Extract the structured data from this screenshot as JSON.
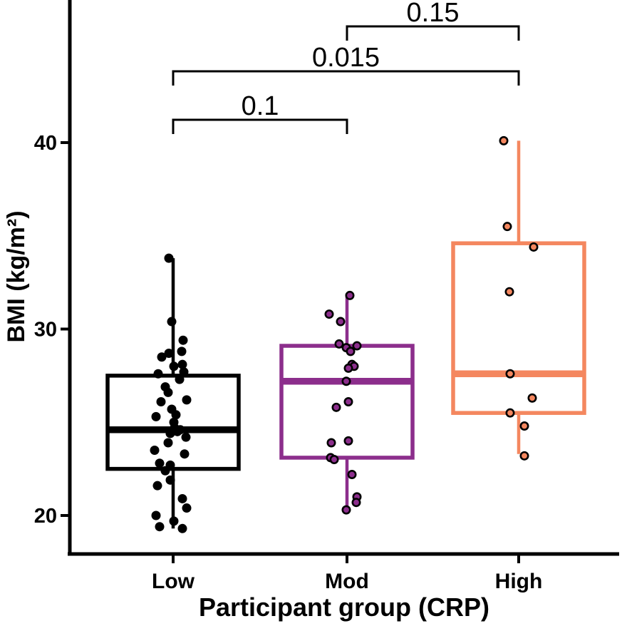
{
  "chart_data": {
    "type": "boxplot",
    "title": "",
    "xlabel": "Participant group (CRP)",
    "ylabel": "BMI (kg/m²)",
    "y_ticks": [
      20,
      30,
      40
    ],
    "ylim": [
      17.9,
      47.6
    ],
    "grid": false,
    "legend": "none",
    "categories": [
      "Low",
      "Mod",
      "High"
    ],
    "groups": [
      {
        "name": "Low",
        "color": "#000000",
        "point_style": "filled-black",
        "box": {
          "whisker_low": 19.3,
          "q1": 22.5,
          "median": 24.6,
          "q3": 27.5,
          "whisker_high": 33.8
        },
        "points": [
          [
            -6,
            33.8
          ],
          [
            -2,
            30.4
          ],
          [
            14,
            29.4
          ],
          [
            12,
            28.8
          ],
          [
            -16,
            28.5
          ],
          [
            -6,
            28.7
          ],
          [
            1,
            28.0
          ],
          [
            13,
            28.1
          ],
          [
            15,
            27.7
          ],
          [
            -21,
            27.6
          ],
          [
            9,
            27.3
          ],
          [
            -11,
            26.9
          ],
          [
            -7,
            26.6
          ],
          [
            -17,
            26.1
          ],
          [
            19,
            26.2
          ],
          [
            -2,
            25.7
          ],
          [
            4,
            25.4
          ],
          [
            -24,
            25.3
          ],
          [
            1,
            25.0
          ],
          [
            6,
            24.5
          ],
          [
            -4,
            24.4
          ],
          [
            2,
            24.7
          ],
          [
            10,
            24.6
          ],
          [
            18,
            24.2
          ],
          [
            -7,
            23.9
          ],
          [
            -26,
            23.5
          ],
          [
            16,
            23.3
          ],
          [
            -19,
            22.8
          ],
          [
            -4,
            22.7
          ],
          [
            -11,
            22.4
          ],
          [
            -4,
            21.9
          ],
          [
            -22,
            21.6
          ],
          [
            13,
            20.9
          ],
          [
            19,
            20.4
          ],
          [
            -24,
            20.0
          ],
          [
            1,
            19.7
          ],
          [
            -19,
            19.4
          ],
          [
            13,
            19.3
          ]
        ]
      },
      {
        "name": "Mod",
        "color": "#8C2E8C",
        "point_style": "color-fill-black-ring",
        "box": {
          "whisker_low": 20.2,
          "q1": 23.1,
          "median": 27.2,
          "q3": 29.1,
          "whisker_high": 31.9
        },
        "points": [
          [
            4,
            31.8
          ],
          [
            -25,
            30.8
          ],
          [
            -9,
            30.4
          ],
          [
            -11,
            29.2
          ],
          [
            14,
            29.1
          ],
          [
            -1,
            29.0
          ],
          [
            5,
            28.8
          ],
          [
            7,
            28.1
          ],
          [
            10,
            28.0
          ],
          [
            2,
            27.9
          ],
          [
            -1,
            27.2
          ],
          [
            2,
            26.1
          ],
          [
            -15,
            25.8
          ],
          [
            2,
            24.0
          ],
          [
            -22,
            23.9
          ],
          [
            -23,
            23.1
          ],
          [
            -18,
            23.0
          ],
          [
            7,
            22.2
          ],
          [
            14,
            21.0
          ],
          [
            13,
            20.7
          ],
          [
            -1,
            20.3
          ]
        ]
      },
      {
        "name": "High",
        "color": "#F4875F",
        "point_style": "color-fill-black-ring",
        "box": {
          "whisker_low": 23.3,
          "q1": 25.5,
          "median": 27.6,
          "q3": 34.6,
          "whisker_high": 40.1
        },
        "points": [
          [
            -21,
            40.1
          ],
          [
            -16,
            35.5
          ],
          [
            21,
            34.4
          ],
          [
            -13,
            32.0
          ],
          [
            -12,
            27.6
          ],
          [
            19,
            26.3
          ],
          [
            -12,
            25.5
          ],
          [
            8,
            24.8
          ],
          [
            8,
            23.2
          ]
        ]
      }
    ],
    "comparisons": [
      {
        "group_a": "Low",
        "group_b": "Mod",
        "p_value": "0.1"
      },
      {
        "group_a": "Low",
        "group_b": "High",
        "p_value": "0.015"
      },
      {
        "group_a": "Mod",
        "group_b": "High",
        "p_value": "0.15"
      }
    ]
  }
}
